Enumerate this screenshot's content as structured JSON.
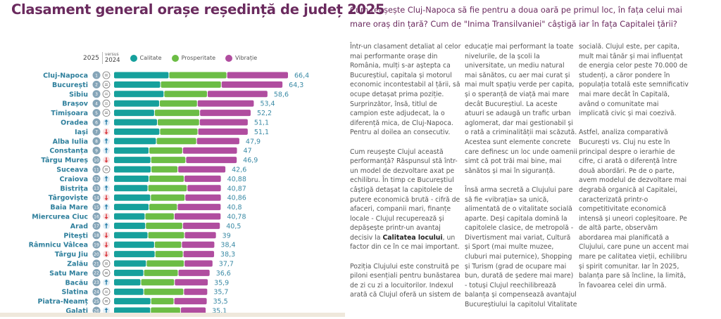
{
  "title": "Clasament general orașe reședință de județ 2025",
  "legend": {
    "year": "2025",
    "versus": "versus",
    "prev_year": "2024",
    "items": [
      {
        "label": "Calitate",
        "color": "#16a09c"
      },
      {
        "label": "Prosperitate",
        "color": "#6cbd45"
      },
      {
        "label": "Vibrație",
        "color": "#b04d9f"
      }
    ]
  },
  "chart_data": {
    "type": "bar",
    "orientation": "horizontal",
    "stacked": true,
    "title": "Clasament general orașe reședință de județ 2025",
    "series_names": [
      "Calitate",
      "Prosperitate",
      "Vibrație"
    ],
    "colors": {
      "Calitate": "#16a09c",
      "Prosperitate": "#6cbd45",
      "Vibrație": "#b04d9f",
      "trend_up": "#2b7fa8",
      "trend_down": "#d8343a"
    },
    "rows": [
      {
        "rank": "1",
        "city": "Cluj-Napoca",
        "trend": "equal",
        "total": "66,4",
        "values": [
          21.0,
          22.0,
          23.4
        ]
      },
      {
        "rank": "2",
        "city": "București",
        "trend": "equal",
        "total": "64,3",
        "values": [
          17.8,
          23.1,
          23.4
        ]
      },
      {
        "rank": "3",
        "city": "Sibiu",
        "trend": "equal",
        "total": "58,6",
        "values": [
          19.1,
          16.5,
          23.0
        ]
      },
      {
        "rank": "4",
        "city": "Brașov",
        "trend": "equal",
        "total": "53,4",
        "values": [
          17.4,
          14.4,
          21.6
        ]
      },
      {
        "rank": "5",
        "city": "Timișoara",
        "trend": "equal",
        "total": "52,2",
        "values": [
          15.5,
          17.2,
          19.5
        ]
      },
      {
        "rank": "6",
        "city": "Oradea",
        "trend": "up",
        "total": "51,1",
        "values": [
          16.6,
          16.0,
          18.5
        ]
      },
      {
        "rank": "7",
        "city": "Iași",
        "trend": "down",
        "total": "51,1",
        "values": [
          17.5,
          14.5,
          19.1
        ]
      },
      {
        "rank": "8",
        "city": "Alba Iulia",
        "trend": "up",
        "total": "47,9",
        "values": [
          16.2,
          15.3,
          16.4
        ]
      },
      {
        "rank": "9",
        "city": "Constanța",
        "trend": "up",
        "total": "47",
        "values": [
          13.4,
          12.8,
          20.8
        ]
      },
      {
        "rank": "10",
        "city": "Târgu Mureș",
        "trend": "down",
        "total": "46,9",
        "values": [
          14.1,
          13.3,
          19.5
        ]
      },
      {
        "rank": "11",
        "city": "Suceava",
        "trend": "equal",
        "total": "42,6",
        "values": [
          14.2,
          10.2,
          18.2
        ]
      },
      {
        "rank": "12",
        "city": "Craiova",
        "trend": "up",
        "total": "40,88",
        "values": [
          13.4,
          13.4,
          14.08
        ]
      },
      {
        "rank": "13",
        "city": "Bistrița",
        "trend": "up",
        "total": "40,87",
        "values": [
          13.0,
          14.9,
          12.97
        ]
      },
      {
        "rank": "14",
        "city": "Târgoviște",
        "trend": "down",
        "total": "40,86",
        "values": [
          14.0,
          13.1,
          13.76
        ]
      },
      {
        "rank": "15",
        "city": "Baia Mare",
        "trend": "up",
        "total": "40,8",
        "values": [
          13.4,
          10.8,
          16.6
        ]
      },
      {
        "rank": "16",
        "city": "Miercurea Ciuc",
        "trend": "down",
        "total": "40,78",
        "values": [
          11.9,
          11.1,
          17.78
        ]
      },
      {
        "rank": "17",
        "city": "Arad",
        "trend": "up",
        "total": "40,5",
        "values": [
          12.1,
          14.1,
          14.3
        ]
      },
      {
        "rank": "18",
        "city": "Pitești",
        "trend": "down",
        "total": "39",
        "values": [
          13.0,
          13.9,
          12.1
        ]
      },
      {
        "rank": "19",
        "city": "Râmnicu Vâlcea",
        "trend": "down",
        "total": "38,4",
        "values": [
          15.5,
          10.3,
          12.6
        ]
      },
      {
        "rank": "20",
        "city": "Târgu Jiu",
        "trend": "down",
        "total": "38,3",
        "values": [
          15.7,
          10.7,
          11.9
        ]
      },
      {
        "rank": "21",
        "city": "Zalău",
        "trend": "equal",
        "total": "37,7",
        "values": [
          12.4,
          14.4,
          10.9
        ]
      },
      {
        "rank": "22",
        "city": "Satu Mare",
        "trend": "equal",
        "total": "36,6",
        "values": [
          11.4,
          13.1,
          12.1
        ]
      },
      {
        "rank": "23",
        "city": "Bacău",
        "trend": "up",
        "total": "35,9",
        "values": [
          10.3,
          12.8,
          12.8
        ]
      },
      {
        "rank": "24",
        "city": "Slatina",
        "trend": "equal",
        "total": "35,7",
        "values": [
          11.4,
          15.2,
          9.1
        ]
      },
      {
        "rank": "25",
        "city": "Piatra-Neamț",
        "trend": "equal",
        "total": "35,5",
        "values": [
          14.1,
          8.8,
          12.6
        ]
      },
      {
        "rank": "26",
        "city": "Galați",
        "trend": "up",
        "total": "35,1",
        "values": [
          14.0,
          11.4,
          9.7
        ]
      }
    ]
  },
  "article": {
    "question": "Cum reușește Cluj-Napoca să fie pentru a doua oară pe primul loc, în fața celui mai mare oraș din țară? Cum de \"Inima Transilvaniei\" câștigă iar în fața Capitalei țării?",
    "p1": "Într-un clasament detaliat al celor mai performante orașe din România, mulți s-ar aștepta ca Bucureștiul, capitala și motorul economic incontestabil al țării, să ocupe detașat prima poziție. Surprinzător, însă, titlul de campion este adjudecat, la o diferență mica, de Cluj-Napoca. Pentru al doilea an consecutiv.",
    "p2a": "Cum reușește Clujul această performanță? Răspunsul stă într-un model de dezvoltare axat pe echilibru. În timp ce Bucureștiul câștigă detașat la capitolele de putere economică brută - cifră de afaceri, companii mari, finanțe locale - Clujul recuperează și depășește printr-un avantaj decisiv la ",
    "p2b": "Calitatea locului",
    "p2c": ", un factor din ce în ce mai important.",
    "p3": "Poziția Clujului este construită pe piloni esențiali pentru bunăstarea de zi cu zi a locuitorilor. Indexul arată că Clujul oferă un sistem de",
    "p4": "educație mai performant la toate nivelurile, de la școli la universitate, un mediu natural mai sănătos, cu aer mai curat și mai mult spațiu verde per capita, și o speranță de viață mai mare decât Bucureștiul. La aceste atuuri se adaugă un trafic urban aglomerat, dar mai gestionabil și o rată a criminalității mai scăzută. Acestea sunt elemente concrete care definesc un loc unde oamenii simt că pot trăi mai bine, mai sănătos și mai în siguranță.",
    "p5": "Însă arma secretă a Clujului pare să fie «vibrația» sa unică, alimentată de o vitalitate socială aparte. Deși capitala domină la capitolele clasice, de metropolă - Divertisment mai variat, Cultură și Sport (mai multe muzee, cluburi mai puternice), Shopping și Turism (grad de ocupare mai bun, durată de ședere mai mare) - totuși Clujul reechilibrează balanța și compensează avantajul Bucureștiului la capitolul Vitalitate",
    "p6": "socială. Clujul este, per capita, mult mai tânăr și mai influențat de energia celor peste 70.000 de studenți, a căror pondere în populația totală este semnificativ mai mare decât în Capitală, având o comunitate mai implicată civic și mai coezivă.",
    "p7": "Astfel, analiza comparativă București vs. Cluj nu este în principal despre o ierarhie de cifre, ci arată o diferență între două abordări. Pe de o parte, avem modelul de dezvoltare mai degrabă organică al Capitalei, caracterizată printr-o competitivitate economică intensă și uneori copleșitoare. Pe de altă parte, observăm abordarea mai planificată a Clujului, care pune un accent mai mare pe calitatea vieții, echilibru și spirit comunitar. Iar în 2025, balanța pare să încline, la limită, în favoarea celei din urmă."
  }
}
